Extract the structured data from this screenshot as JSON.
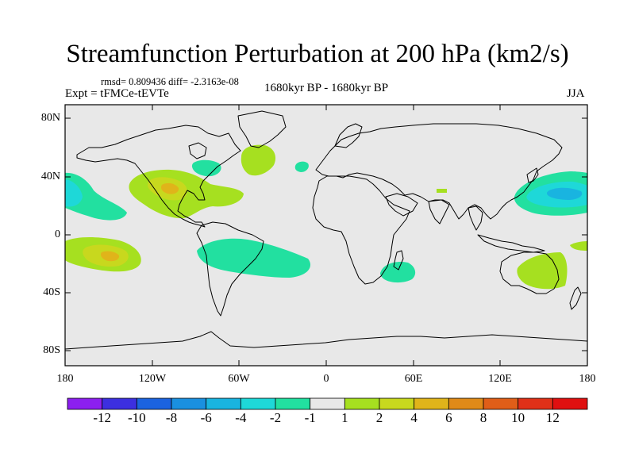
{
  "title": "Streamfunction Perturbation at 200 hPa (km2/s)",
  "stats_line": "rmsd= 0.809436 diff= -2.3163e-08",
  "left_label": "Expt = tFMCe-tEVTe",
  "center_label": "1680kyr BP - 1680kyr BP",
  "right_label": "JJA",
  "map": {
    "projection": "cylindrical-equidistant",
    "lon_range": [
      -180,
      180
    ],
    "lat_range": [
      -90,
      90
    ],
    "lat_tick_labels": [
      "80N",
      "40N",
      "0",
      "40S",
      "80S"
    ],
    "lon_tick_labels": [
      "180",
      "120W",
      "60W",
      "0",
      "60E",
      "120E",
      "180"
    ],
    "ocean_color": "#e8e8e8",
    "coast_color": "#000000"
  },
  "colorbar": {
    "labels": [
      "-12",
      "-10",
      "-8",
      "-6",
      "-4",
      "-2",
      "-1",
      "1",
      "2",
      "4",
      "6",
      "8",
      "10",
      "12"
    ],
    "colors": [
      "#8c1ff0",
      "#3c2fe0",
      "#1b63e0",
      "#1a90e0",
      "#19b4e0",
      "#1ed8d8",
      "#22e0a0",
      "#e8e8e8",
      "#a6e020",
      "#c8d81e",
      "#e0b41a",
      "#e08a18",
      "#e05e18",
      "#e03018",
      "#e01010"
    ]
  },
  "chart_data": {
    "type": "contour-map",
    "variable": "streamfunction perturbation",
    "level_hPa": 200,
    "units": "km2/s",
    "season": "JJA",
    "features": [
      {
        "region": "eastern North Pacific / Mexico",
        "lon": -110,
        "lat": 25,
        "sign": "positive",
        "peak_level": 4
      },
      {
        "region": "subtropical North Atlantic",
        "lon": -75,
        "lat": 38,
        "sign": "negative",
        "peak_level": -1
      },
      {
        "region": "North Atlantic off Newfoundland",
        "lon": -48,
        "lat": 48,
        "sign": "positive",
        "peak_level": 2
      },
      {
        "region": "central North Pacific",
        "lon": -170,
        "lat": 30,
        "sign": "negative",
        "peak_level": -2
      },
      {
        "region": "western North Pacific",
        "lon": 155,
        "lat": 25,
        "sign": "negative",
        "peak_level": -4
      },
      {
        "region": "South Pacific",
        "lon": -150,
        "lat": -15,
        "sign": "positive",
        "peak_level": 4
      },
      {
        "region": "tropical South Atlantic / Brazil",
        "lon": -60,
        "lat": -20,
        "sign": "negative",
        "peak_level": -1
      },
      {
        "region": "SW Indian Ocean near Madagascar",
        "lon": 50,
        "lat": -27,
        "sign": "negative",
        "peak_level": -1
      },
      {
        "region": "eastern Australia / Tasman",
        "lon": 150,
        "lat": -25,
        "sign": "positive",
        "peak_level": 2
      }
    ]
  }
}
